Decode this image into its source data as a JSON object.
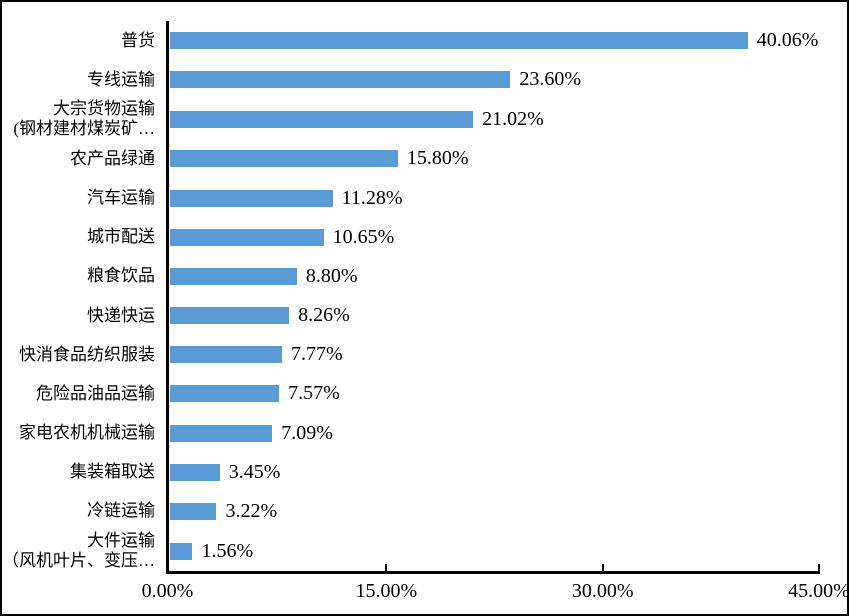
{
  "chart_data": {
    "type": "bar",
    "orientation": "horizontal",
    "title": "",
    "grid": "off",
    "legend": "none",
    "bar_color": "#5B9BD5",
    "axis_color": "#000000",
    "xlim": [
      0,
      45
    ],
    "x_ticks": [
      {
        "value": 0,
        "label": "0.00%",
        "tick_mark": false
      },
      {
        "value": 15,
        "label": "15.00%",
        "tick_mark": true
      },
      {
        "value": 30,
        "label": "30.00%",
        "tick_mark": true
      },
      {
        "value": 45,
        "label": "45.00%",
        "tick_mark": true
      }
    ],
    "bars": [
      {
        "category_lines": [
          "普货"
        ],
        "value": 40.06,
        "label": "40.06%"
      },
      {
        "category_lines": [
          "专线运输"
        ],
        "value": 23.6,
        "label": "23.60%"
      },
      {
        "category_lines": [
          "大宗货物运输",
          "(钢材建材煤炭矿…"
        ],
        "value": 21.02,
        "label": "21.02%"
      },
      {
        "category_lines": [
          "农产品绿通"
        ],
        "value": 15.8,
        "label": "15.80%"
      },
      {
        "category_lines": [
          "汽车运输"
        ],
        "value": 11.28,
        "label": "11.28%"
      },
      {
        "category_lines": [
          "城市配送"
        ],
        "value": 10.65,
        "label": "10.65%"
      },
      {
        "category_lines": [
          "粮食饮品"
        ],
        "value": 8.8,
        "label": "8.80%"
      },
      {
        "category_lines": [
          "快递快运"
        ],
        "value": 8.26,
        "label": "8.26%"
      },
      {
        "category_lines": [
          "快消食品纺织服装"
        ],
        "value": 7.77,
        "label": "7.77%"
      },
      {
        "category_lines": [
          "危险品油品运输"
        ],
        "value": 7.57,
        "label": "7.57%"
      },
      {
        "category_lines": [
          "家电农机机械运输"
        ],
        "value": 7.09,
        "label": "7.09%"
      },
      {
        "category_lines": [
          "集装箱取送"
        ],
        "value": 3.45,
        "label": "3.45%"
      },
      {
        "category_lines": [
          "冷链运输"
        ],
        "value": 3.22,
        "label": "3.22%"
      },
      {
        "category_lines": [
          "大件运输",
          "（风机叶片、变压…"
        ],
        "value": 1.56,
        "label": "1.56%"
      }
    ]
  }
}
